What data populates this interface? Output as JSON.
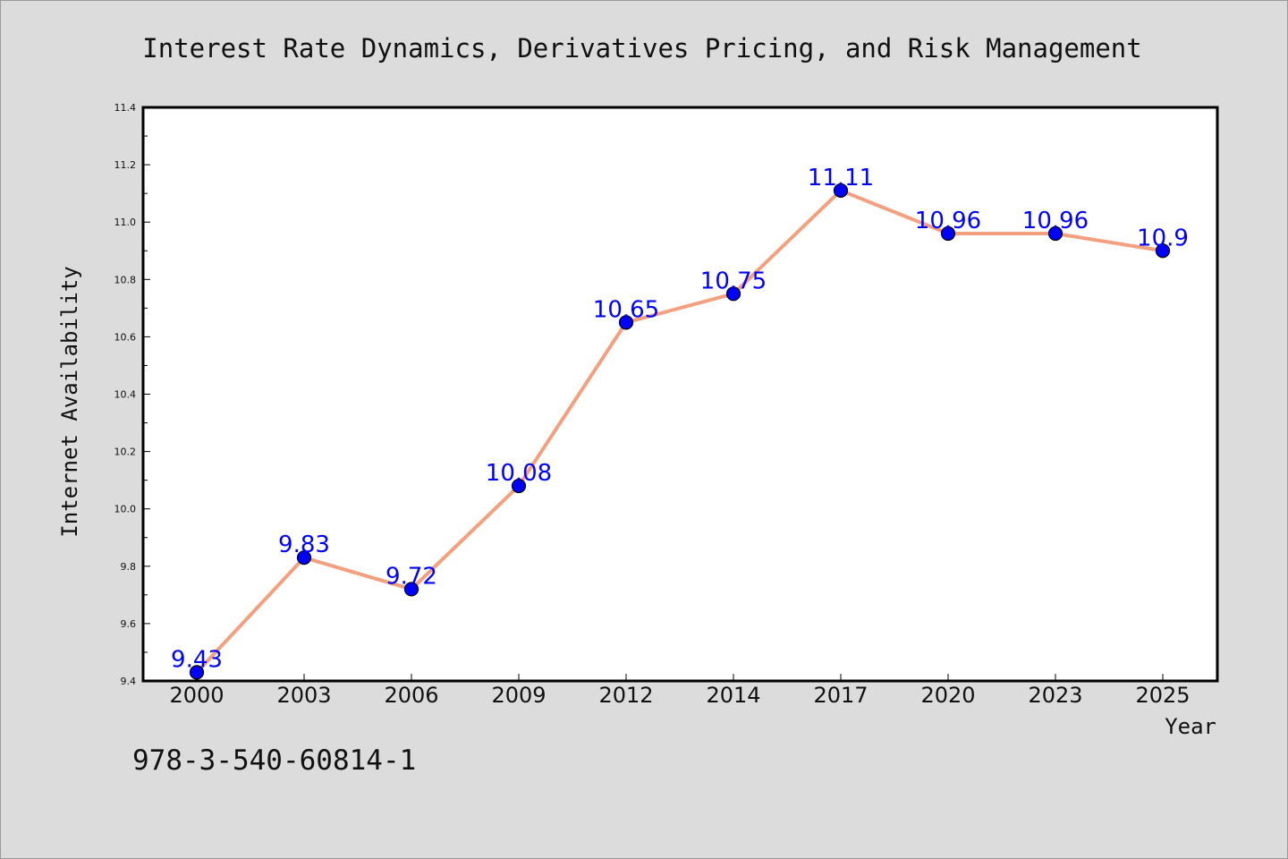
{
  "chart_data": {
    "type": "line",
    "title": "Interest Rate Dynamics, Derivatives Pricing, and Risk Management",
    "xlabel": "Year",
    "ylabel": "Internet Availability",
    "categories": [
      "2000",
      "2003",
      "2006",
      "2009",
      "2012",
      "2014",
      "2017",
      "2020",
      "2023",
      "2025"
    ],
    "values": [
      9.43,
      9.83,
      9.72,
      10.08,
      10.65,
      10.75,
      11.11,
      10.96,
      10.96,
      10.9
    ],
    "data_labels": [
      "9.43",
      "9.83",
      "9.72",
      "10.08",
      "10.65",
      "10.75",
      "11.11",
      "10.96",
      "10.96",
      "10.9"
    ],
    "ylim": [
      9.4,
      11.4
    ],
    "yticks": [
      "9.4",
      "9.6",
      "9.8",
      "10.0",
      "10.2",
      "10.4",
      "10.6",
      "10.8",
      "11.0",
      "11.2",
      "11.4"
    ],
    "grid": false,
    "colors": {
      "line": "#f4a07e",
      "marker": "#0000ff",
      "label": "#0000ff",
      "background": "#dcdcdc",
      "plot_background": "#ffffff"
    }
  },
  "caption": "978-3-540-60814-1"
}
